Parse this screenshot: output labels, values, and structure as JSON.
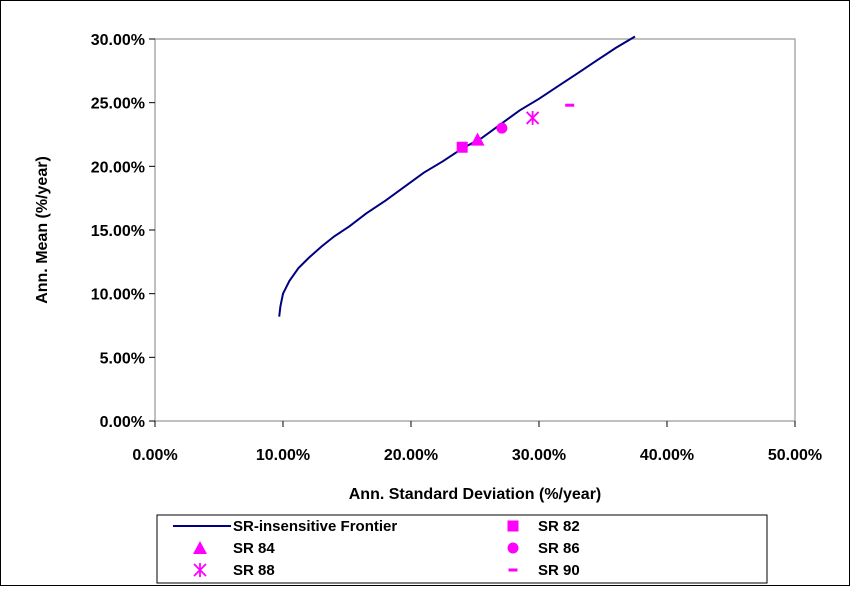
{
  "chart_data": {
    "type": "scatter",
    "xlabel": "Ann. Standard Deviation (%/year)",
    "ylabel": "Ann. Mean (%/year)",
    "xlim": [
      0,
      50
    ],
    "ylim": [
      0,
      30
    ],
    "x_ticks": [
      "0.00%",
      "10.00%",
      "20.00%",
      "30.00%",
      "40.00%",
      "50.00%"
    ],
    "y_ticks": [
      "0.00%",
      "5.00%",
      "10.00%",
      "15.00%",
      "20.00%",
      "25.00%",
      "30.00%"
    ],
    "x_tick_values": [
      0,
      10,
      20,
      30,
      40,
      50
    ],
    "y_tick_values": [
      0,
      5,
      10,
      15,
      20,
      25,
      30
    ],
    "grid": false,
    "legend_position": "bottom",
    "frontier": {
      "name": "SR-insensitive Frontier",
      "color": "#000080",
      "x": [
        9.7,
        9.8,
        10.0,
        10.5,
        11.2,
        12.0,
        13.0,
        14.0,
        15.2,
        16.5,
        18.0,
        19.5,
        21.0,
        22.5,
        24.0,
        25.5,
        27.0,
        28.5,
        30.0,
        31.5,
        33.0,
        34.5,
        36.0,
        37.5
      ],
      "y": [
        8.2,
        9.0,
        10.0,
        11.0,
        12.0,
        12.8,
        13.7,
        14.5,
        15.3,
        16.3,
        17.3,
        18.4,
        19.5,
        20.4,
        21.4,
        22.2,
        23.3,
        24.4,
        25.3,
        26.3,
        27.3,
        28.3,
        29.3,
        30.2
      ]
    },
    "series": [
      {
        "name": "SR 82",
        "marker": "square",
        "color": "#FF00FF",
        "x": 24.0,
        "y": 21.5
      },
      {
        "name": "SR 84",
        "marker": "triangle",
        "color": "#FF00FF",
        "x": 25.2,
        "y": 22.1
      },
      {
        "name": "SR 86",
        "marker": "circle",
        "color": "#FF00FF",
        "x": 27.1,
        "y": 23.0
      },
      {
        "name": "SR 88",
        "marker": "asterisk",
        "color": "#FF00FF",
        "x": 29.5,
        "y": 23.8
      },
      {
        "name": "SR 90",
        "marker": "dash",
        "color": "#FF00FF",
        "x": 32.4,
        "y": 24.8
      }
    ]
  }
}
